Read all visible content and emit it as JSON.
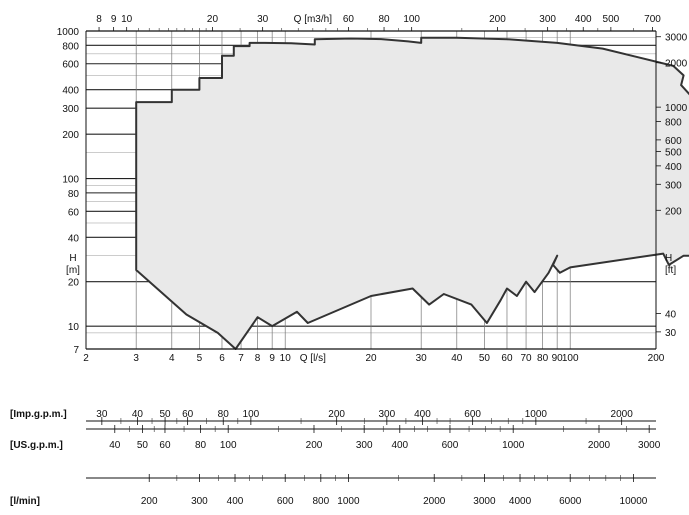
{
  "chart_data": {
    "type": "area",
    "title": "",
    "x_axis": {
      "scale": "log",
      "range": [
        2,
        200
      ],
      "label": "Q [l/s]",
      "ticks": [
        "2",
        "3",
        "4",
        "5",
        "6",
        "7",
        "8",
        "9",
        "10",
        "20",
        "30",
        "40",
        "50",
        "60",
        "70",
        "80",
        "90",
        "100",
        "200"
      ]
    },
    "y_axis": {
      "scale": "log",
      "range": [
        7,
        1000
      ],
      "label_line1": "H",
      "label_line2": "[m]",
      "ticks": [
        "7",
        "10",
        "20",
        "40",
        "60",
        "80",
        "100",
        "200",
        "300",
        "400",
        "600",
        "800",
        "1000"
      ]
    },
    "top_axis": {
      "label": "Q [m3/h]",
      "ticks": [
        "8",
        "9",
        "10",
        "20",
        "30",
        "60",
        "80",
        "100",
        "200",
        "300",
        "400",
        "500",
        "700"
      ]
    },
    "right_axis": {
      "label_line1": "H",
      "label_line2": "[ft]",
      "ticks": [
        "30",
        "40",
        "200",
        "300",
        "400",
        "500",
        "600",
        "800",
        "1000",
        "2000",
        "3000"
      ]
    },
    "series": [
      {
        "name": "",
        "fill": "#e9e9e9",
        "stroke": "#333333",
        "points": [
          [
            3.0,
            24
          ],
          [
            3.0,
            330
          ],
          [
            4.0,
            330
          ],
          [
            4.0,
            400
          ],
          [
            5.0,
            400
          ],
          [
            5.0,
            480
          ],
          [
            6.0,
            480
          ],
          [
            6.0,
            680
          ],
          [
            6.6,
            680
          ],
          [
            6.6,
            790
          ],
          [
            7.5,
            790
          ],
          [
            7.5,
            830
          ],
          [
            8.5,
            830
          ],
          [
            10.5,
            825
          ],
          [
            12.7,
            810
          ],
          [
            12.7,
            880
          ],
          [
            17,
            890
          ],
          [
            22,
            880
          ],
          [
            27,
            850
          ],
          [
            30,
            830
          ],
          [
            30,
            900
          ],
          [
            40,
            900
          ],
          [
            60,
            880
          ],
          [
            90,
            830
          ],
          [
            130,
            760
          ],
          [
            230,
            580
          ],
          [
            250,
            500
          ],
          [
            245,
            430
          ],
          [
            270,
            350
          ],
          [
            345,
            300
          ],
          [
            400,
            235
          ],
          [
            415,
            190
          ],
          [
            410,
            150
          ],
          [
            380,
            110
          ],
          [
            370,
            90
          ],
          [
            395,
            72
          ],
          [
            380,
            55
          ],
          [
            400,
            43
          ],
          [
            340,
            36
          ],
          [
            290,
            30
          ],
          [
            250,
            30
          ],
          [
            222,
            26
          ],
          [
            212,
            31
          ],
          [
            100,
            25
          ],
          [
            92,
            23
          ],
          [
            87,
            26
          ],
          [
            90,
            30
          ],
          [
            84,
            23
          ],
          [
            75,
            17
          ],
          [
            70,
            20
          ],
          [
            65,
            16
          ],
          [
            60,
            18
          ],
          [
            57,
            15
          ],
          [
            51,
            10.5
          ],
          [
            45,
            14
          ],
          [
            36,
            16.5
          ],
          [
            32,
            14
          ],
          [
            28,
            18
          ],
          [
            20,
            16
          ],
          [
            12,
            10.5
          ],
          [
            11,
            12.5
          ],
          [
            9,
            10
          ],
          [
            8,
            11.5
          ],
          [
            6.7,
            7
          ],
          [
            5.8,
            9
          ],
          [
            4.5,
            12
          ],
          [
            3,
            24
          ]
        ]
      }
    ]
  },
  "conversion_scales": [
    {
      "label": "[Imp.g.p.m.]",
      "tick_labels": [
        "30",
        "40",
        "50",
        "60",
        "80",
        "100",
        "200",
        "300",
        "400",
        "600",
        "1000",
        "2000"
      ]
    },
    {
      "label": "[US.g.p.m.]",
      "tick_labels": [
        "40",
        "50",
        "60",
        "80",
        "100",
        "200",
        "300",
        "400",
        "600",
        "1000",
        "2000",
        "3000"
      ]
    },
    {
      "label": "[l/min]",
      "tick_labels": [
        "200",
        "300",
        "400",
        "600",
        "800",
        "1000",
        "2000",
        "3000",
        "4000",
        "6000",
        "10000"
      ]
    }
  ]
}
